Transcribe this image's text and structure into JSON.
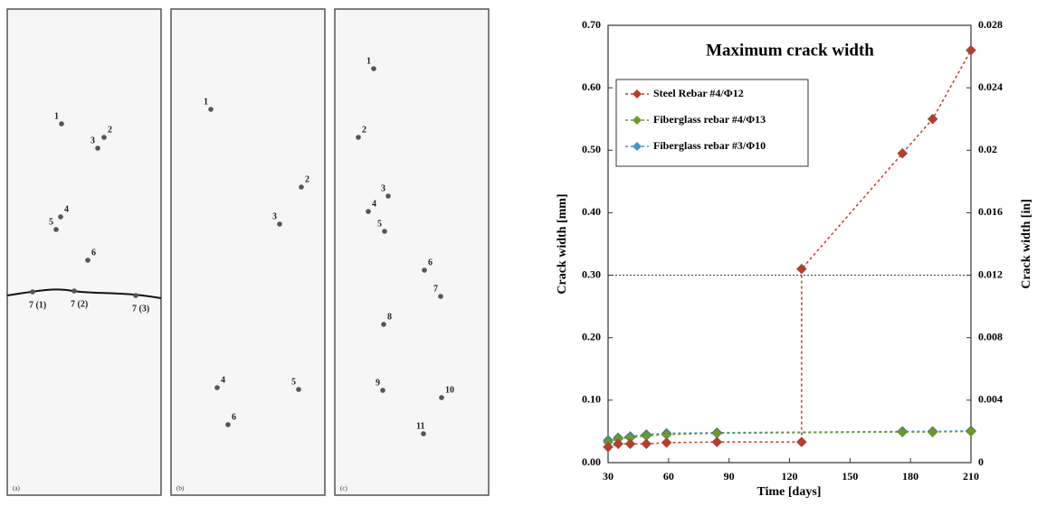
{
  "panels": [
    {
      "label": "(a)",
      "points": [
        "1",
        "2",
        "3",
        "4",
        "5",
        "6",
        "7 (1)",
        "7 (2)",
        "7 (3)"
      ]
    },
    {
      "label": "(b)",
      "points": [
        "1",
        "2",
        "3",
        "4",
        "5",
        "6"
      ]
    },
    {
      "label": "(c)",
      "points": [
        "1",
        "2",
        "3",
        "4",
        "5",
        "6",
        "7",
        "8",
        "9",
        "10",
        "11"
      ]
    }
  ],
  "chart_data": {
    "type": "line",
    "title": "Maximum crack width",
    "x_label": "Time [days]",
    "y_label": "Crack width [mm]",
    "y2_label": "Crack width [in]",
    "xlim": [
      30,
      210
    ],
    "xticks": [
      30,
      60,
      90,
      120,
      150,
      180,
      210
    ],
    "ylim": [
      0,
      0.7
    ],
    "yticks": [
      {
        "value": 0,
        "label": "0.00"
      },
      {
        "value": 0.1,
        "label": "0.10"
      },
      {
        "value": 0.2,
        "label": "0.20"
      },
      {
        "value": 0.3,
        "label": "0.30"
      },
      {
        "value": 0.4,
        "label": "0.40"
      },
      {
        "value": 0.5,
        "label": "0.50"
      },
      {
        "value": 0.6,
        "label": "0.60"
      },
      {
        "value": 0.7,
        "label": "0.70"
      }
    ],
    "y2lim": [
      0,
      0.028
    ],
    "y2ticks": [
      0,
      0.004,
      0.008,
      0.012,
      0.016,
      0.02,
      0.024,
      0.028
    ],
    "hline": 0.3,
    "series": [
      {
        "name": "Steel Rebar #4/Φ12",
        "color": "#c0392b",
        "x": [
          30,
          35,
          41,
          49,
          59,
          84,
          126,
          126,
          176,
          191,
          210
        ],
        "values": [
          0.025,
          0.03,
          0.03,
          0.03,
          0.032,
          0.033,
          0.033,
          0.31,
          0.495,
          0.55,
          0.66
        ]
      },
      {
        "name": "Fiberglass rebar #4/Φ13",
        "color": "#6a9a2a",
        "x": [
          30,
          35,
          41,
          49,
          59,
          84,
          176,
          191,
          210
        ],
        "values": [
          0.033,
          0.038,
          0.04,
          0.043,
          0.045,
          0.047,
          0.049,
          0.049,
          0.05
        ]
      },
      {
        "name": "Fiberglass rebar #3/Φ10",
        "color": "#3a9ac9",
        "x": [
          30,
          35,
          41,
          49,
          59,
          84,
          176,
          191,
          210
        ],
        "values": [
          0.036,
          0.04,
          0.042,
          0.045,
          0.047,
          0.048,
          0.05,
          0.05,
          0.051
        ]
      }
    ]
  }
}
